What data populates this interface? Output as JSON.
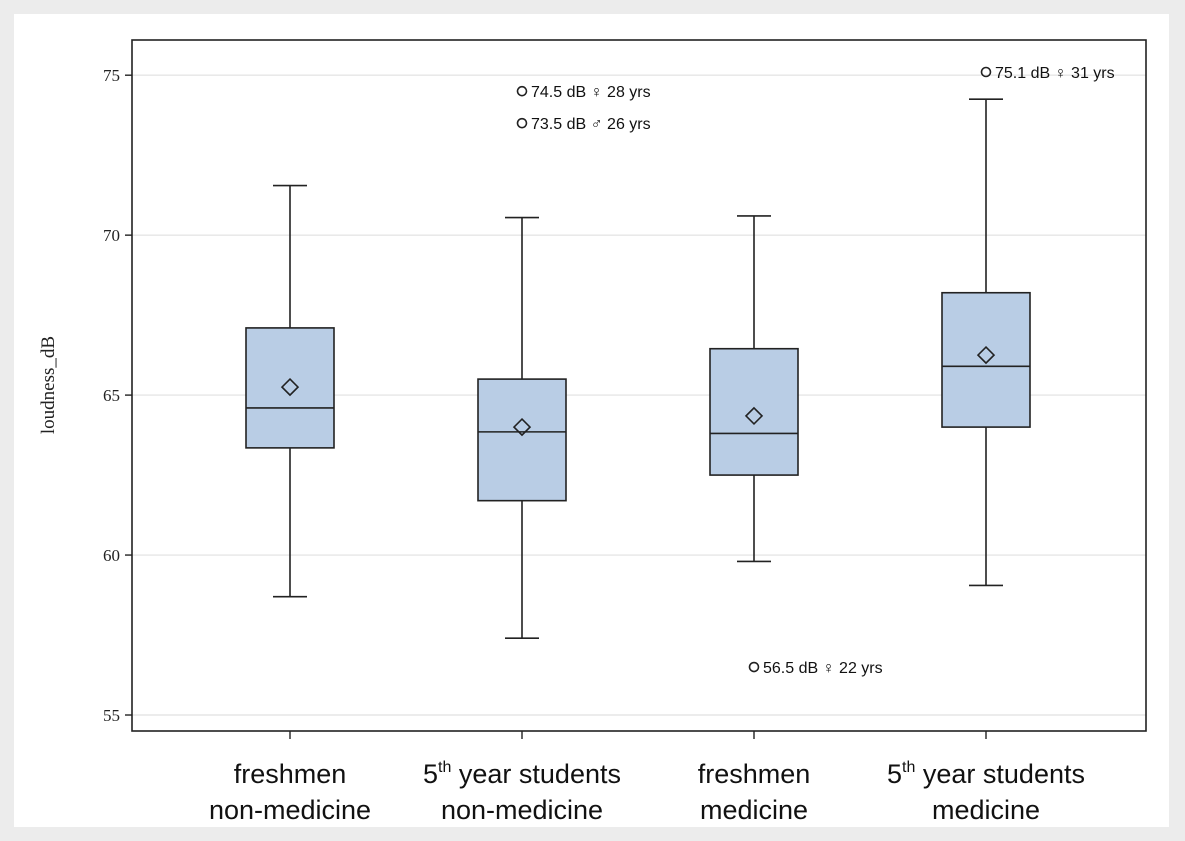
{
  "chart_data": {
    "type": "box",
    "ylabel": "loudness_dB",
    "ylim": [
      54.5,
      76.1
    ],
    "yticks": [
      55,
      60,
      65,
      70,
      75
    ],
    "grid": true,
    "colors": {
      "box_fill": "#b9cde5",
      "stroke": "#222222",
      "grid": "#e6e6e6"
    },
    "categories": [
      {
        "line1": "freshmen",
        "line2": "non-medicine"
      },
      {
        "line1": "5",
        "sup": "th",
        "line1_rest": " year students",
        "line2": "non-medicine"
      },
      {
        "line1": "freshmen",
        "line2": "medicine"
      },
      {
        "line1": "5",
        "sup": "th",
        "line1_rest": " year students",
        "line2": "medicine"
      }
    ],
    "boxes": [
      {
        "whisker_low": 58.7,
        "q1": 63.35,
        "median": 64.6,
        "q3": 67.1,
        "whisker_high": 71.55,
        "mean": 65.25
      },
      {
        "whisker_low": 57.4,
        "q1": 61.7,
        "median": 63.85,
        "q3": 65.5,
        "whisker_high": 70.55,
        "mean": 64.0
      },
      {
        "whisker_low": 59.8,
        "q1": 62.5,
        "median": 63.8,
        "q3": 66.45,
        "whisker_high": 70.6,
        "mean": 64.35
      },
      {
        "whisker_low": 59.05,
        "q1": 64.0,
        "median": 65.9,
        "q3": 68.2,
        "whisker_high": 74.25,
        "mean": 66.25
      }
    ],
    "outliers": [
      {
        "category": 1,
        "value": 74.5,
        "label": "74.5 dB  ♀  28 yrs"
      },
      {
        "category": 1,
        "value": 73.5,
        "label": "73.5 dB  ♂  26 yrs"
      },
      {
        "category": 2,
        "value": 56.5,
        "label": "56.5 dB  ♀  22 yrs"
      },
      {
        "category": 3,
        "value": 75.1,
        "label": "75.1 dB ♀ 31 yrs"
      }
    ]
  }
}
